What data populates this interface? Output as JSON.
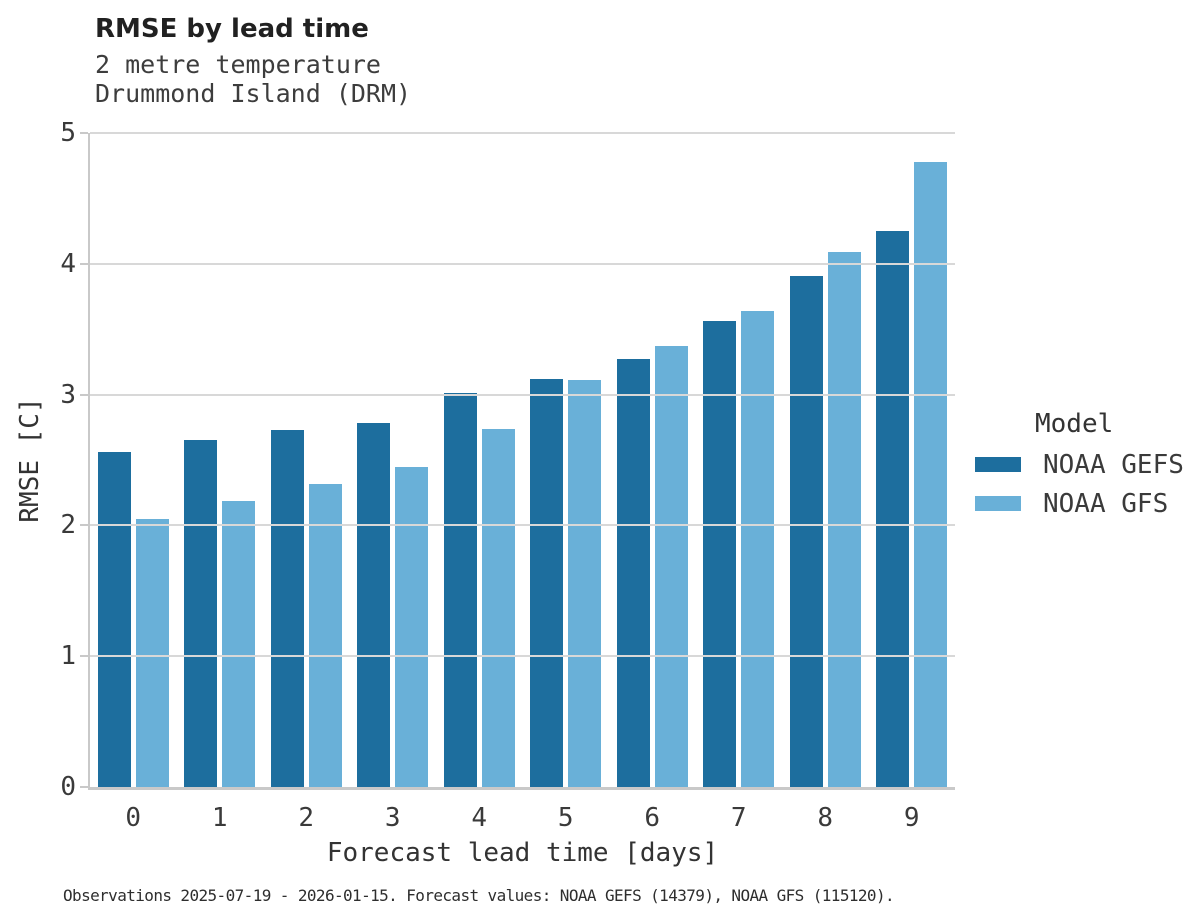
{
  "caption": "Observations 2025-07-19 - 2026-01-15. Forecast values: NOAA GEFS (14379), NOAA GFS (115120).",
  "chart_data": {
    "type": "bar",
    "title": "RMSE by lead time",
    "subtitle": [
      "2 metre temperature",
      "Drummond Island (DRM)"
    ],
    "xlabel": "Forecast lead time [days]",
    "ylabel": "RMSE [C]",
    "categories": [
      "0",
      "1",
      "2",
      "3",
      "4",
      "5",
      "6",
      "7",
      "8",
      "9"
    ],
    "series": [
      {
        "name": "NOAA GEFS",
        "color": "#1d6e9e",
        "values": [
          2.56,
          2.65,
          2.73,
          2.78,
          3.01,
          3.12,
          3.27,
          3.56,
          3.91,
          4.25
        ]
      },
      {
        "name": "NOAA GFS",
        "color": "#69b0d8",
        "values": [
          2.05,
          2.19,
          2.32,
          2.45,
          2.74,
          3.11,
          3.37,
          3.64,
          4.09,
          4.78
        ]
      }
    ],
    "ylim": [
      0,
      5
    ],
    "yticks": [
      0,
      1,
      2,
      3,
      4,
      5
    ],
    "grid": true,
    "legend": {
      "title": "Model",
      "position": "right"
    }
  },
  "colors": {
    "gefs_bar": "#1d6e9e",
    "gfs_bar": "#69b0d8",
    "gridline": "#d8d8d8",
    "spine": "#c9c9c9"
  }
}
